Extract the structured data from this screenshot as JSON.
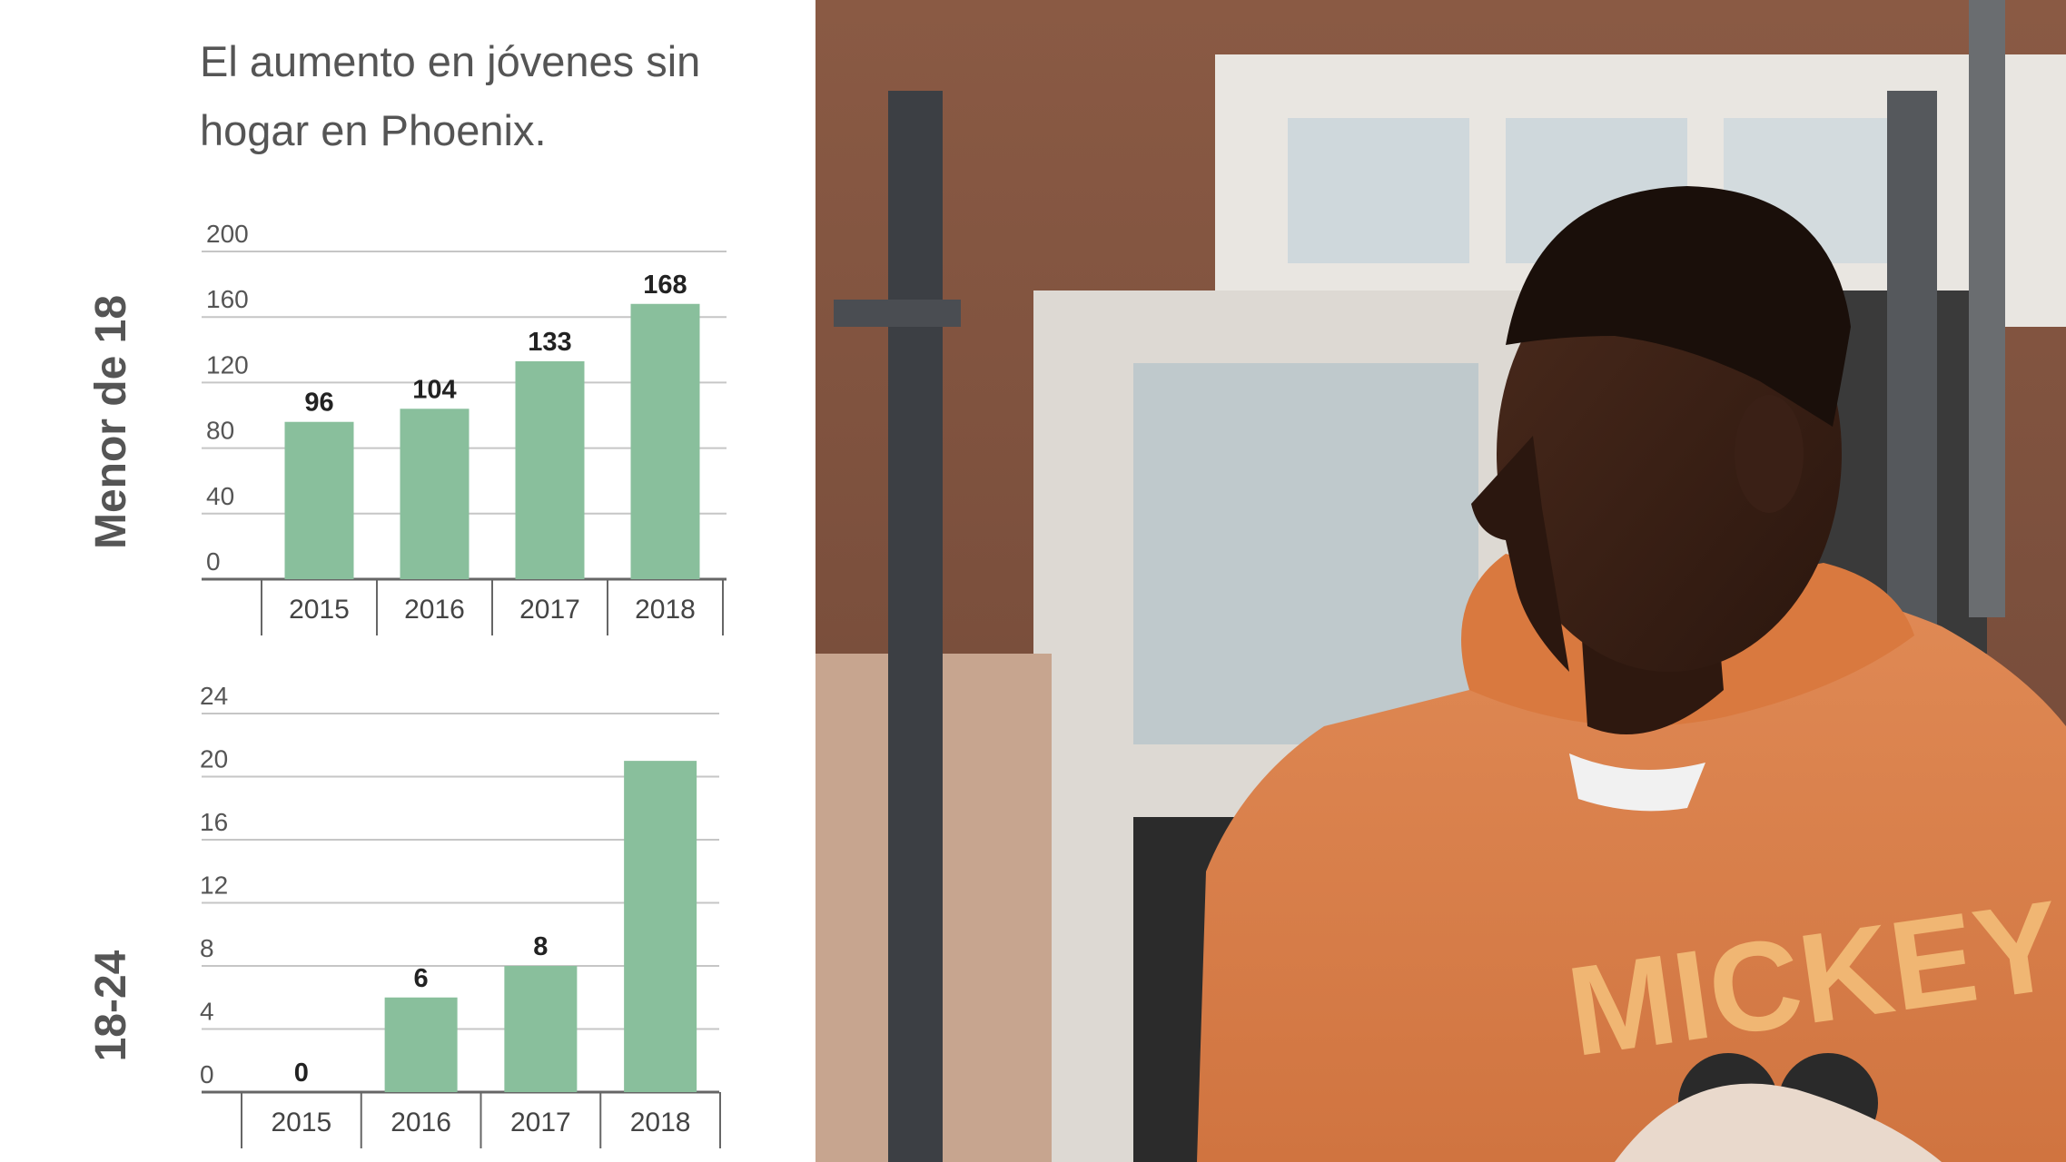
{
  "page": {
    "title": "El aumento en jóvenes sin hogar en Phoenix."
  },
  "colors": {
    "bar": "#89bf9c",
    "grid": "#c6c6c6",
    "axis": "#666666",
    "text": "#555555"
  },
  "photo": {
    "description_icon": "photo-icon",
    "shirt_text": "MICKEY"
  },
  "chart_data": [
    {
      "type": "bar",
      "group_label": "Menor de 18",
      "categories": [
        "2015",
        "2016",
        "2017",
        "2018"
      ],
      "values": [
        96,
        104,
        133,
        168
      ],
      "value_labels": [
        "96",
        "104",
        "133",
        "168"
      ],
      "yticks": [
        0,
        40,
        80,
        120,
        160,
        200
      ],
      "ytick_labels": [
        "0",
        "40",
        "80",
        "120",
        "160",
        "200"
      ],
      "ylim": [
        0,
        200
      ],
      "color": "#89bf9c"
    },
    {
      "type": "bar",
      "group_label": "18-24",
      "categories": [
        "2015",
        "2016",
        "2017",
        "2018"
      ],
      "values": [
        0,
        6,
        8,
        21
      ],
      "value_labels": [
        "0",
        "6",
        "8",
        ""
      ],
      "yticks": [
        0,
        4,
        8,
        12,
        16,
        20,
        24
      ],
      "ytick_labels": [
        "0",
        "4",
        "8",
        "12",
        "16",
        "20",
        "24"
      ],
      "ylim": [
        0,
        24
      ],
      "color": "#89bf9c"
    }
  ]
}
